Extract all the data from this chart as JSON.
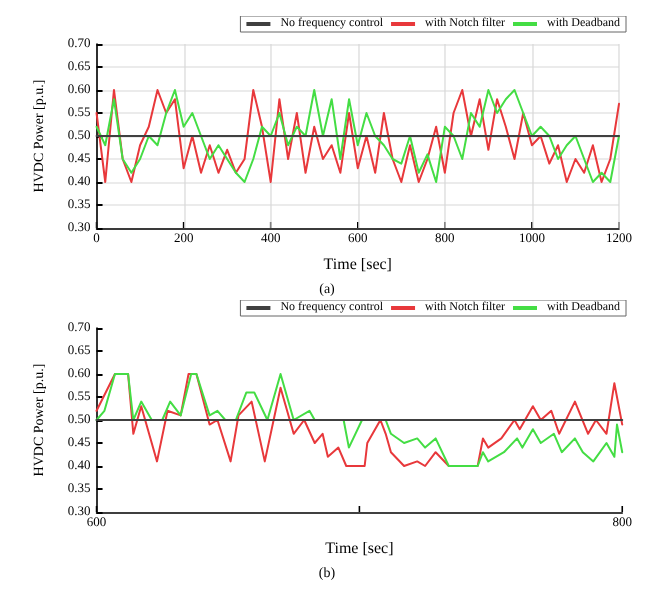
{
  "chart_data": [
    {
      "type": "line",
      "xlabel": "Time [sec]",
      "ylabel": "HVDC Power [p.u.]",
      "annotations": [
        "(a)"
      ],
      "xlim": [
        0,
        1200
      ],
      "xticks": [
        0,
        200,
        400,
        600,
        800,
        1000,
        1200
      ],
      "ylim": [
        0.3,
        0.7
      ],
      "yticks": [
        {
          "value": 0.3,
          "label": "0.30"
        },
        {
          "value": 0.35,
          "label": "0.35"
        },
        {
          "value": 0.4,
          "label": "0.40"
        },
        {
          "value": 0.45,
          "label": "0.45"
        },
        {
          "value": 0.5,
          "label": "0.50"
        },
        {
          "value": 0.55,
          "label": "0.55"
        },
        {
          "value": 0.6,
          "label": "0.60"
        },
        {
          "value": 0.65,
          "label": "0.65"
        },
        {
          "value": 0.7,
          "label": "0.70"
        }
      ],
      "grid": true,
      "legend": "top right",
      "marker": "none",
      "line_style": "solid",
      "series": [
        {
          "name": "with Notch filter",
          "color": "#e8383b",
          "x": [
            0,
            20,
            40,
            60,
            80,
            100,
            120,
            140,
            160,
            180,
            200,
            220,
            240,
            260,
            280,
            300,
            320,
            340,
            360,
            380,
            400,
            420,
            440,
            460,
            480,
            500,
            520,
            540,
            560,
            580,
            600,
            620,
            640,
            660,
            680,
            700,
            720,
            740,
            760,
            780,
            800,
            820,
            840,
            860,
            880,
            900,
            920,
            940,
            960,
            980,
            1000,
            1020,
            1040,
            1060,
            1080,
            1100,
            1120,
            1140,
            1160,
            1180,
            1200
          ],
          "values": [
            0.55,
            0.4,
            0.6,
            0.45,
            0.4,
            0.48,
            0.52,
            0.6,
            0.55,
            0.58,
            0.43,
            0.5,
            0.42,
            0.48,
            0.42,
            0.47,
            0.42,
            0.45,
            0.6,
            0.52,
            0.4,
            0.58,
            0.45,
            0.55,
            0.42,
            0.52,
            0.45,
            0.48,
            0.42,
            0.55,
            0.43,
            0.5,
            0.42,
            0.55,
            0.45,
            0.4,
            0.48,
            0.4,
            0.45,
            0.52,
            0.42,
            0.55,
            0.6,
            0.5,
            0.58,
            0.47,
            0.58,
            0.52,
            0.45,
            0.55,
            0.48,
            0.5,
            0.44,
            0.48,
            0.4,
            0.45,
            0.42,
            0.48,
            0.4,
            0.45,
            0.57
          ]
        },
        {
          "name": "with Deadband",
          "color": "#44dd44",
          "x": [
            0,
            20,
            40,
            60,
            80,
            100,
            120,
            140,
            160,
            180,
            200,
            220,
            240,
            260,
            280,
            300,
            320,
            340,
            360,
            380,
            400,
            420,
            440,
            460,
            480,
            500,
            520,
            540,
            560,
            580,
            600,
            620,
            640,
            660,
            680,
            700,
            720,
            740,
            760,
            780,
            800,
            820,
            840,
            860,
            880,
            900,
            920,
            940,
            960,
            980,
            1000,
            1020,
            1040,
            1060,
            1080,
            1100,
            1120,
            1140,
            1160,
            1180,
            1200
          ],
          "values": [
            0.52,
            0.48,
            0.58,
            0.45,
            0.42,
            0.45,
            0.5,
            0.48,
            0.55,
            0.6,
            0.52,
            0.55,
            0.5,
            0.45,
            0.48,
            0.45,
            0.42,
            0.4,
            0.45,
            0.52,
            0.5,
            0.55,
            0.48,
            0.52,
            0.5,
            0.6,
            0.5,
            0.58,
            0.45,
            0.58,
            0.48,
            0.55,
            0.5,
            0.48,
            0.45,
            0.44,
            0.5,
            0.42,
            0.46,
            0.4,
            0.52,
            0.5,
            0.45,
            0.55,
            0.52,
            0.6,
            0.55,
            0.58,
            0.6,
            0.55,
            0.5,
            0.52,
            0.5,
            0.45,
            0.48,
            0.5,
            0.45,
            0.4,
            0.42,
            0.4,
            0.5
          ]
        },
        {
          "name": "No frequency control",
          "color": "#404040",
          "x": [
            0,
            1200
          ],
          "values": [
            0.5,
            0.5
          ]
        }
      ]
    },
    {
      "type": "line",
      "xlabel": "Time [sec]",
      "ylabel": "HVDC Power [p.u.]",
      "annotations": [
        "(b)"
      ],
      "xlim": [
        600,
        800
      ],
      "xticks": [
        600,
        {
          "value": 700,
          "label": null
        },
        800
      ],
      "ylim": [
        0.3,
        0.7
      ],
      "yticks": [
        {
          "value": 0.3,
          "label": "0.30"
        },
        {
          "value": 0.35,
          "label": "0.35"
        },
        {
          "value": 0.4,
          "label": "0.40"
        },
        {
          "value": 0.45,
          "label": "0.45"
        },
        {
          "value": 0.5,
          "label": "0.50"
        },
        {
          "value": 0.55,
          "label": "0.55"
        },
        {
          "value": 0.6,
          "label": "0.60"
        },
        {
          "value": 0.65,
          "label": "0.65"
        },
        {
          "value": 0.7,
          "label": "0.70"
        }
      ],
      "legend": "top right",
      "marker": "none",
      "line_style": "solid",
      "series": [
        {
          "name": "with Notch filter",
          "color": "#e8383b",
          "x": [
            600,
            607,
            612,
            614,
            617,
            623,
            627,
            632,
            635,
            638,
            643,
            646,
            651,
            654,
            659,
            664,
            670,
            675,
            679,
            683,
            686,
            688,
            692,
            695,
            702,
            703,
            708,
            710,
            712,
            717,
            722,
            725,
            729,
            734,
            745,
            747,
            749,
            754,
            759,
            761,
            766,
            769,
            773,
            776,
            782,
            787,
            790,
            794,
            797,
            800
          ],
          "values": [
            0.52,
            0.6,
            0.6,
            0.47,
            0.53,
            0.41,
            0.52,
            0.51,
            0.6,
            0.6,
            0.49,
            0.5,
            0.41,
            0.51,
            0.54,
            0.41,
            0.57,
            0.47,
            0.5,
            0.45,
            0.47,
            0.42,
            0.44,
            0.4,
            0.4,
            0.45,
            0.5,
            0.47,
            0.43,
            0.4,
            0.41,
            0.4,
            0.43,
            0.4,
            0.4,
            0.46,
            0.44,
            0.46,
            0.5,
            0.48,
            0.53,
            0.5,
            0.52,
            0.47,
            0.54,
            0.47,
            0.5,
            0.47,
            0.58,
            0.49
          ]
        },
        {
          "name": "with Deadband",
          "color": "#44dd44",
          "x": [
            600,
            603,
            607,
            612,
            614,
            617,
            621,
            625,
            628,
            632,
            636,
            638,
            643,
            646,
            649,
            653,
            657,
            660,
            665,
            670,
            675,
            681,
            683,
            694,
            696,
            701,
            710,
            712,
            717,
            722,
            725,
            729,
            734,
            745,
            747,
            749,
            755,
            760,
            762,
            766,
            769,
            774,
            777,
            782,
            785,
            789,
            794,
            797,
            798,
            800
          ],
          "values": [
            0.5,
            0.52,
            0.6,
            0.6,
            0.5,
            0.54,
            0.5,
            0.5,
            0.54,
            0.51,
            0.6,
            0.6,
            0.51,
            0.52,
            0.5,
            0.5,
            0.56,
            0.56,
            0.5,
            0.6,
            0.5,
            0.52,
            0.5,
            0.5,
            0.44,
            0.5,
            0.5,
            0.47,
            0.45,
            0.46,
            0.44,
            0.46,
            0.4,
            0.4,
            0.43,
            0.41,
            0.43,
            0.46,
            0.44,
            0.48,
            0.45,
            0.47,
            0.43,
            0.46,
            0.43,
            0.41,
            0.45,
            0.42,
            0.49,
            0.43
          ]
        },
        {
          "name": "No frequency control",
          "color": "#404040",
          "x": [
            600,
            800
          ],
          "values": [
            0.5,
            0.5
          ]
        }
      ]
    }
  ]
}
